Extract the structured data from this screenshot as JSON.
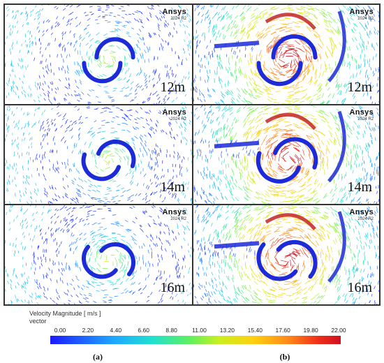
{
  "figure": {
    "panels": [
      {
        "column": "a",
        "row": 0,
        "distance": "12m",
        "logo": "Ansys",
        "version": "2024 R2"
      },
      {
        "column": "b",
        "row": 0,
        "distance": "12m",
        "logo": "Ansys",
        "version": "2024 R2"
      },
      {
        "column": "a",
        "row": 1,
        "distance": "14m",
        "logo": "Ansys",
        "version": "2024 R2"
      },
      {
        "column": "b",
        "row": 1,
        "distance": "14m",
        "logo": "Ansys",
        "version": "2024 R2"
      },
      {
        "column": "a",
        "row": 2,
        "distance": "16m",
        "logo": "Ansys",
        "version": "2024 R2"
      },
      {
        "column": "b",
        "row": 2,
        "distance": "16m",
        "logo": "Ansys",
        "version": "2024 R2"
      }
    ],
    "legend": {
      "title": "Velocity Magnitude [ m/s ]",
      "subtitle": "vector",
      "ticks": [
        "0.00",
        "2.20",
        "4.40",
        "6.60",
        "8.80",
        "11.00",
        "13.20",
        "15.40",
        "17.60",
        "19.80",
        "22.00"
      ],
      "range": [
        0,
        22
      ],
      "colors": [
        "#1a1aff",
        "#1ea8ff",
        "#20e0d0",
        "#5ff060",
        "#ffd010",
        "#ff8818",
        "#d01020"
      ]
    },
    "sublabels": {
      "a": "(a)",
      "b": "(b)"
    }
  }
}
